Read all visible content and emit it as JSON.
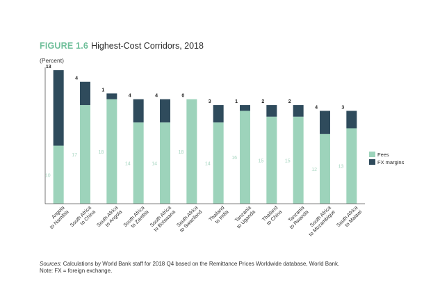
{
  "figure": {
    "label": "FIGURE 1.6",
    "title": "Highest-Cost Corridors, 2018",
    "unit": "(Percent)"
  },
  "source": {
    "label": "Sources",
    "text": ": Calculations by World Bank staff for 2018 Q4 based on the Remittance Prices Worldwide database, World Bank.",
    "note": "Note: FX = foreign exchange."
  },
  "colors": {
    "fees": "#9dd3bb",
    "fx": "#2f4b5c",
    "fees_label": "#a6d6c0",
    "axis": "#555555"
  },
  "chart_data": {
    "type": "bar",
    "stacked": true,
    "categories": [
      [
        "Angola",
        "to Namibia"
      ],
      [
        "South Africa",
        "to China"
      ],
      [
        "South Africa",
        "to Angola"
      ],
      [
        "South Africa",
        "to Zambia"
      ],
      [
        "South Africa",
        "to Botswana"
      ],
      [
        "South Africa",
        "to Swaziland"
      ],
      [
        "Thailand",
        "to India"
      ],
      [
        "Tanzania",
        "to Uganda"
      ],
      [
        "Thailand",
        "to China"
      ],
      [
        "Tanzania",
        "to Rwanda"
      ],
      [
        "South Africa",
        "to Mozambique"
      ],
      [
        "South Africa",
        "to Malawi"
      ]
    ],
    "series": [
      {
        "name": "Fees",
        "values": [
          10,
          17,
          18,
          14,
          14,
          18,
          14,
          16,
          15,
          15,
          12,
          13
        ]
      },
      {
        "name": "FX margins",
        "values": [
          13,
          4,
          1,
          4,
          4,
          0,
          3,
          1,
          2,
          2,
          4,
          3
        ]
      }
    ],
    "ylim": [
      0,
      23
    ],
    "legend_position": "right",
    "grid": false
  }
}
